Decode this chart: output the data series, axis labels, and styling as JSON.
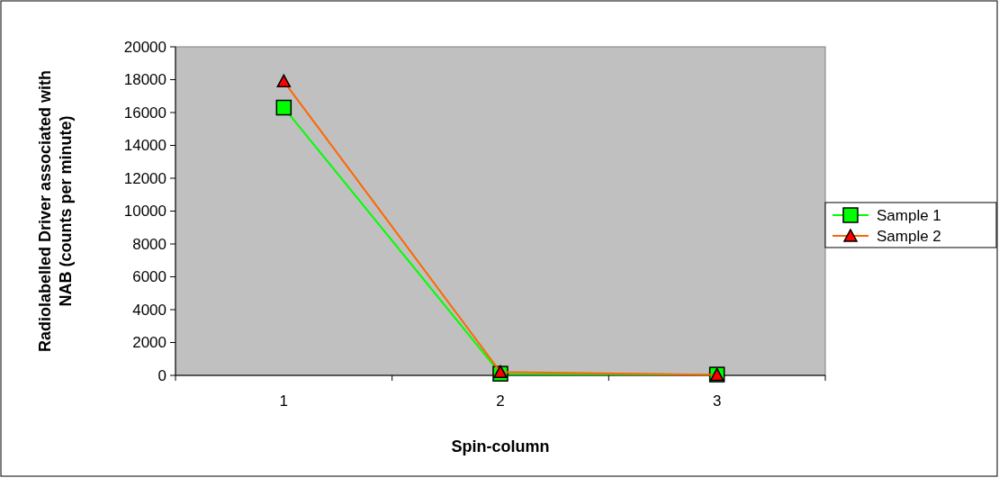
{
  "chart_data": {
    "type": "line",
    "xlabel": "Spin-column",
    "ylabel": "Radiolabelled Driver associated with NAB (counts per minute)",
    "categories": [
      "1",
      "2",
      "3"
    ],
    "series": [
      {
        "name": "Sample 1",
        "color": "#00ff00",
        "marker": "square",
        "values": [
          16300,
          100,
          50
        ]
      },
      {
        "name": "Sample 2",
        "color": "#ff6600",
        "marker": "triangle",
        "values": [
          17900,
          200,
          30
        ]
      }
    ],
    "ylim": [
      0,
      20000
    ],
    "yticks": [
      0,
      2000,
      4000,
      6000,
      8000,
      10000,
      12000,
      14000,
      16000,
      18000,
      20000
    ],
    "grid": false,
    "legend": "right"
  }
}
